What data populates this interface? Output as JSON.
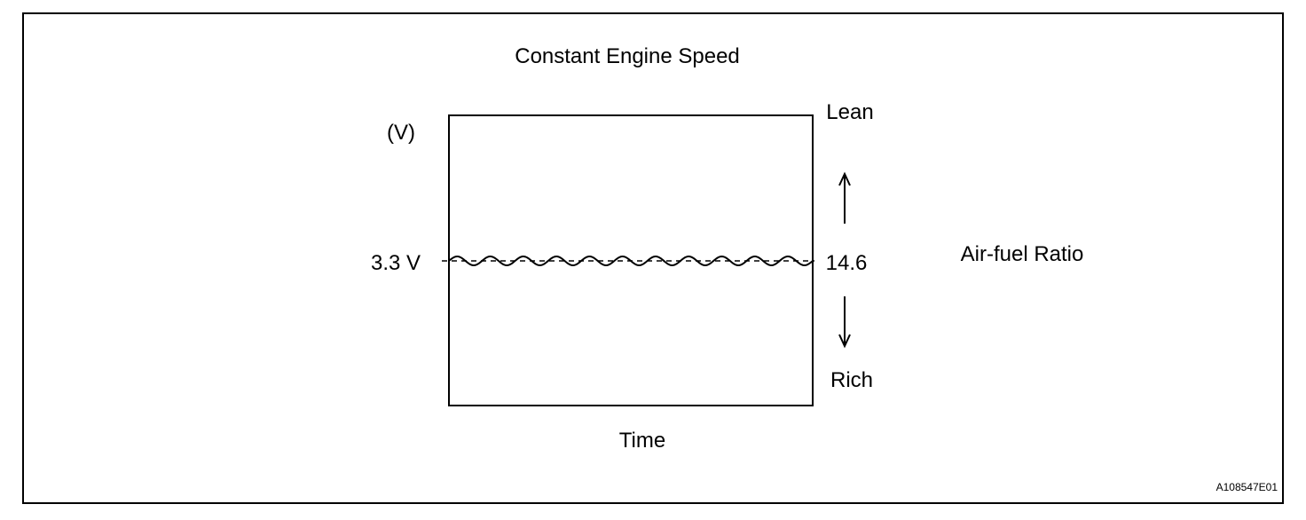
{
  "title": "Constant Engine Speed",
  "y_unit": "(V)",
  "x_label": "Time",
  "reference_voltage": "3.3 V",
  "reference_ratio": "14.6",
  "lean_label": "Lean",
  "rich_label": "Rich",
  "ratio_label": "Air-fuel Ratio",
  "figure_code": "A108547E01",
  "signal": {
    "description_voltage": 3.3,
    "oscillation_cycles": 11
  }
}
